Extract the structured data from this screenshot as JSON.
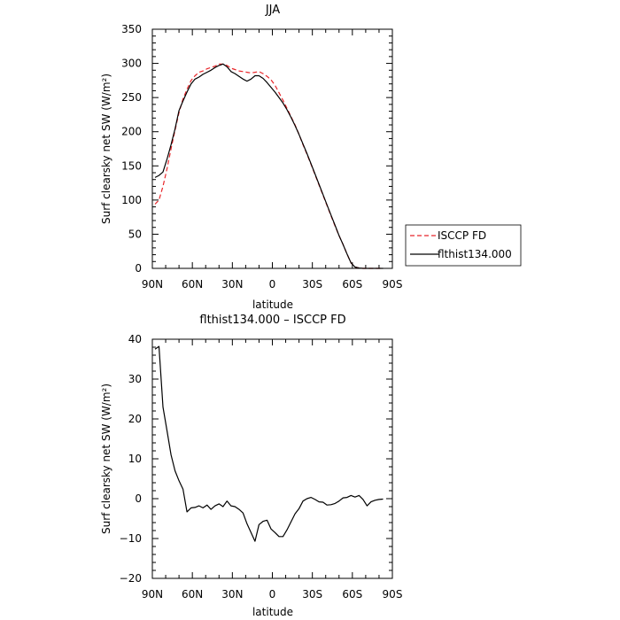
{
  "chart_data": [
    {
      "type": "line",
      "title": "JJA",
      "xlabel": "latitude",
      "ylabel": "Surf clearsky net SW (W/m²)",
      "xlim": [
        90,
        -90
      ],
      "ylim": [
        0,
        350
      ],
      "x_ticks": [
        90,
        60,
        30,
        0,
        -30,
        -60,
        -90
      ],
      "x_tick_labels": [
        "90N",
        "60N",
        "30N",
        "0",
        "30S",
        "60S",
        "90S"
      ],
      "y_ticks": [
        0,
        50,
        100,
        150,
        200,
        250,
        300,
        350
      ],
      "y_tick_labels": [
        "0",
        "50",
        "100",
        "150",
        "200",
        "250",
        "300",
        "350"
      ],
      "legend_position": "right",
      "series": [
        {
          "name": "ISCCP FD",
          "color": "#e8262a",
          "dash": "dashed",
          "x": [
            88,
            85,
            82,
            79,
            76,
            73,
            70,
            67,
            64,
            61,
            58,
            55,
            52,
            49,
            46,
            43,
            40,
            37,
            34,
            31,
            28,
            25,
            22,
            19,
            16,
            13,
            10,
            7,
            4,
            1,
            -2,
            -5,
            -8,
            -11,
            -14,
            -17,
            -20,
            -23,
            -26,
            -29,
            -32,
            -35,
            -38,
            -41,
            -44,
            -47,
            -50,
            -53,
            -56,
            -59,
            -62,
            -65,
            -68,
            -71,
            -74,
            -77,
            -80,
            -83
          ],
          "values": [
            94,
            100,
            120,
            146,
            175,
            202,
            228,
            248,
            262,
            275,
            282,
            287,
            289,
            292,
            294,
            296,
            299,
            299,
            297,
            293,
            291,
            289,
            288,
            287,
            286,
            287,
            288,
            285,
            281,
            276,
            268,
            257,
            246,
            234,
            222,
            210,
            196,
            181,
            167,
            152,
            137,
            122,
            107,
            92,
            77,
            62,
            48,
            35,
            21,
            8,
            2,
            0.5,
            0,
            0,
            0,
            0,
            0,
            0
          ]
        },
        {
          "name": "flthist134.000",
          "color": "#000000",
          "dash": "solid",
          "x": [
            88,
            85,
            82,
            79,
            76,
            73,
            70,
            67,
            64,
            61,
            58,
            55,
            52,
            49,
            46,
            43,
            40,
            37,
            34,
            31,
            28,
            25,
            22,
            19,
            16,
            13,
            10,
            7,
            4,
            1,
            -2,
            -5,
            -8,
            -11,
            -14,
            -17,
            -20,
            -23,
            -26,
            -29,
            -32,
            -35,
            -38,
            -41,
            -44,
            -47,
            -50,
            -53,
            -56,
            -59,
            -62,
            -65,
            -68,
            -71,
            -74,
            -77,
            -80,
            -83
          ],
          "values": [
            133,
            136,
            141,
            160,
            181,
            204,
            231,
            245,
            258,
            270,
            277,
            280,
            284,
            287,
            290,
            294,
            297,
            299,
            295,
            288,
            285,
            281,
            277,
            274,
            277,
            282,
            282,
            278,
            272,
            265,
            258,
            250,
            242,
            232,
            221,
            209,
            196,
            182,
            168,
            153,
            138,
            123,
            108,
            93,
            78,
            63,
            48,
            35,
            21,
            8,
            2,
            0.5,
            0,
            0,
            0,
            0,
            0,
            0
          ]
        }
      ]
    },
    {
      "type": "line",
      "title": "flthist134.000 – ISCCP FD",
      "xlabel": "latitude",
      "ylabel": "Surf clearsky net SW (W/m²)",
      "xlim": [
        90,
        -90
      ],
      "ylim": [
        -20,
        40
      ],
      "x_ticks": [
        90,
        60,
        30,
        0,
        -30,
        -60,
        -90
      ],
      "x_tick_labels": [
        "90N",
        "60N",
        "30N",
        "0",
        "30S",
        "60S",
        "90S"
      ],
      "y_ticks": [
        -20,
        -10,
        0,
        10,
        20,
        30,
        40
      ],
      "y_tick_labels": [
        "−20",
        "−10",
        "0",
        "10",
        "20",
        "30",
        "40"
      ],
      "series": [
        {
          "color": "#000000",
          "dash": "solid",
          "x": [
            88,
            85,
            82,
            79,
            76,
            73,
            70,
            67,
            64,
            61,
            58,
            55,
            52,
            49,
            46,
            43,
            40,
            37,
            34,
            31,
            28,
            25,
            22,
            19,
            16,
            13,
            10,
            7,
            4,
            1,
            -2,
            -5,
            -8,
            -11,
            -14,
            -17,
            -20,
            -23,
            -26,
            -29,
            -32,
            -35,
            -38,
            -41,
            -44,
            -47,
            -50,
            -53,
            -56,
            -59,
            -62,
            -65,
            -68,
            -71,
            -74,
            -77,
            -80,
            -83
          ],
          "values": [
            37.5,
            38.2,
            23,
            17,
            11,
            7,
            4.5,
            2.4,
            -3.3,
            -2.3,
            -2.2,
            -1.8,
            -2.3,
            -1.6,
            -2.7,
            -1.8,
            -1.3,
            -2,
            -0.6,
            -1.8,
            -2,
            -2.7,
            -3.6,
            -6.3,
            -8.5,
            -10.7,
            -6.5,
            -5.7,
            -5.4,
            -7.6,
            -8.5,
            -9.5,
            -9.5,
            -7.8,
            -5.8,
            -3.8,
            -2.5,
            -0.6,
            0,
            0.3,
            -0.2,
            -0.8,
            -0.9,
            -1.6,
            -1.5,
            -1.2,
            -0.6,
            0.2,
            0.3,
            0.8,
            0.4,
            0.8,
            -0.2,
            -1.8,
            -0.8,
            -0.4,
            -0.2,
            -0.1
          ]
        }
      ]
    }
  ]
}
